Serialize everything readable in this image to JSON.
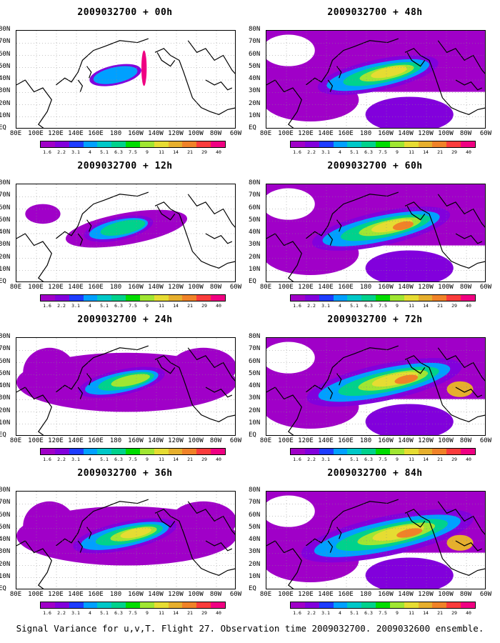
{
  "caption": "Signal Variance for u,v,T. Flight 27. Observation time 2009032700. 2009032600 ensemble.",
  "lat_labels": [
    "80N",
    "70N",
    "60N",
    "50N",
    "40N",
    "30N",
    "20N",
    "10N",
    "EQ"
  ],
  "lon_labels": [
    "80E",
    "100E",
    "120E",
    "140E",
    "160E",
    "180",
    "160W",
    "140W",
    "120W",
    "100W",
    "80W",
    "60W"
  ],
  "colorbar": {
    "ticks": [
      "1.6",
      "2.2",
      "3.1",
      "4",
      "5.1",
      "6.3",
      "7.5",
      "9",
      "11",
      "14",
      "21",
      "29",
      "40"
    ],
    "colors": [
      "#a000c8",
      "#8200dc",
      "#1e3cff",
      "#00a0ff",
      "#00c8c8",
      "#00d28c",
      "#00dc00",
      "#a0e632",
      "#e6dc32",
      "#e6af2d",
      "#f08228",
      "#fa3c3c",
      "#f00082"
    ]
  },
  "panels": [
    {
      "title": "2009032700 + 00h",
      "level": 0
    },
    {
      "title": "2009032700 + 48h",
      "level": 4
    },
    {
      "title": "2009032700 + 12h",
      "level": 1
    },
    {
      "title": "2009032700 + 60h",
      "level": 5
    },
    {
      "title": "2009032700 + 24h",
      "level": 2
    },
    {
      "title": "2009032700 + 72h",
      "level": 6
    },
    {
      "title": "2009032700 + 36h",
      "level": 3
    },
    {
      "title": "2009032700 + 84h",
      "level": 7
    }
  ]
}
